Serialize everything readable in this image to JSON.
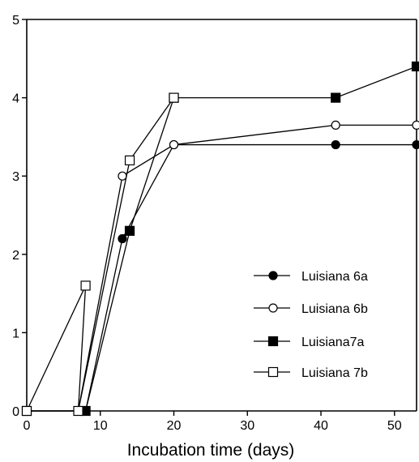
{
  "chart_data": {
    "type": "line",
    "title": "",
    "xlabel": "Incubation time (days)",
    "ylabel": "",
    "xlim": [
      0,
      53
    ],
    "ylim": [
      0,
      5
    ],
    "xticks": [
      0,
      10,
      20,
      30,
      40,
      50
    ],
    "yticks": [
      0,
      1,
      2,
      3,
      4,
      5
    ],
    "grid": false,
    "legend_position": "lower-right",
    "series": [
      {
        "name": "Luisiana 6a",
        "marker": "filled-circle",
        "x": [
          0,
          8,
          13,
          20,
          42,
          53
        ],
        "y": [
          0,
          0,
          2.2,
          3.4,
          3.4,
          3.4
        ]
      },
      {
        "name": "Luisiana 6b",
        "marker": "open-circle",
        "x": [
          0,
          7,
          13,
          20,
          42,
          53
        ],
        "y": [
          0,
          0,
          3.0,
          3.4,
          3.65,
          3.65
        ]
      },
      {
        "name": "Luisiana7a",
        "marker": "filled-square",
        "x": [
          0,
          8,
          14,
          20,
          42,
          53
        ],
        "y": [
          0,
          0,
          2.3,
          4.0,
          4.0,
          4.4
        ]
      },
      {
        "name": "Luisiana 7b",
        "marker": "open-square",
        "x": [
          0,
          8,
          7,
          14,
          20
        ],
        "y": [
          0,
          1.6,
          0,
          3.2,
          4.0
        ]
      }
    ]
  }
}
